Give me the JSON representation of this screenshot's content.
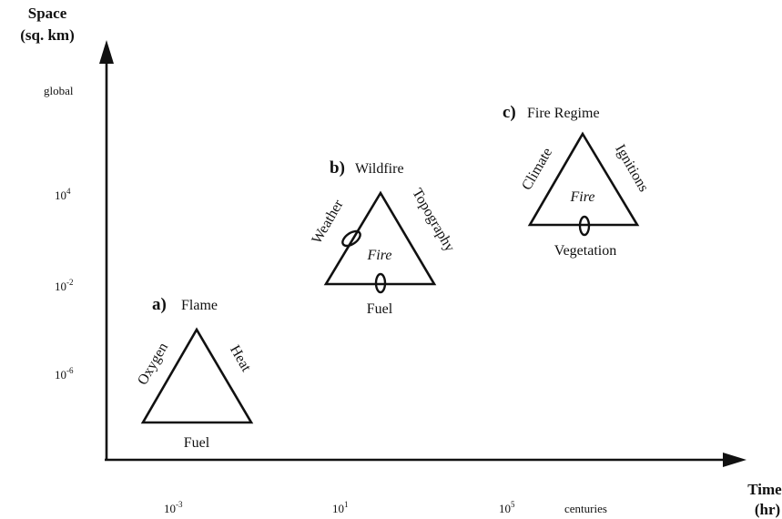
{
  "axes": {
    "y_label": [
      "Space",
      "(sq. km)"
    ],
    "x_label": [
      "Time",
      "(hr)"
    ],
    "y_ticks": [
      {
        "text": "global"
      },
      {
        "base": "10",
        "exp": "4"
      },
      {
        "base": "10",
        "exp": "-2"
      },
      {
        "base": "10",
        "exp": "-6"
      }
    ],
    "x_ticks": [
      {
        "base": "10",
        "exp": "-3"
      },
      {
        "base": "10",
        "exp": "1"
      },
      {
        "base": "10",
        "exp": "5"
      },
      {
        "text": "centuries"
      }
    ]
  },
  "triangles": [
    {
      "letter": "a)",
      "title": "Flame",
      "left": "Oxygen",
      "right": "Heat",
      "bottom": "Fuel"
    },
    {
      "letter": "b)",
      "title": "Wildfire",
      "left": "Weather",
      "right": "Topography",
      "bottom": "Fuel",
      "center": "Fire"
    },
    {
      "letter": "c)",
      "title": "Fire Regime",
      "left": "Climate",
      "right": "Ignitions",
      "bottom": "Vegetation",
      "center": "Fire"
    }
  ]
}
